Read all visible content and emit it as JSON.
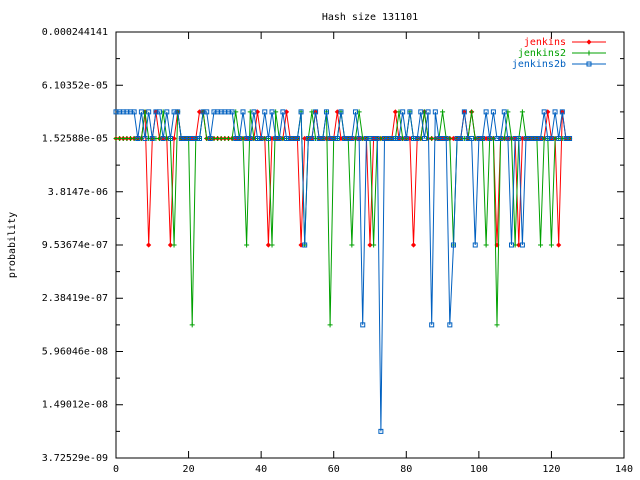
{
  "chart_data": {
    "type": "line",
    "title": "Hash size 131101",
    "xlabel": "",
    "ylabel": "probability",
    "xlim": [
      0,
      140
    ],
    "ylim": [
      3.72529e-09,
      0.000244141
    ],
    "yscale": "log",
    "xticks": [
      "0",
      "20",
      "40",
      "60",
      "80",
      "100",
      "120",
      "140"
    ],
    "yticks": [
      "0.000244141",
      "6.10352e-05",
      "1.52588e-05",
      "3.8147e-06",
      "9.53674e-07",
      "2.38419e-07",
      "5.96046e-08",
      "1.49012e-08",
      "3.72529e-09"
    ],
    "legend_position": "top-right",
    "series": [
      {
        "name": "jenkins",
        "color": "#ff0000",
        "marker": "diamond",
        "x": [
          0,
          1,
          2,
          3,
          4,
          5,
          6,
          7,
          8,
          9,
          10,
          11,
          12,
          13,
          14,
          15,
          16,
          17,
          18,
          19,
          20,
          21,
          22,
          23,
          24,
          25,
          26,
          27,
          28,
          29,
          30,
          31,
          32,
          33,
          34,
          35,
          36,
          37,
          38,
          39,
          40,
          41,
          42,
          43,
          44,
          45,
          46,
          47,
          48,
          49,
          50,
          51,
          52,
          53,
          54,
          55,
          56,
          57,
          58,
          59,
          60,
          61,
          62,
          63,
          64,
          65,
          66,
          67,
          68,
          69,
          70,
          71,
          72,
          73,
          74,
          75,
          76,
          77,
          78,
          79,
          80,
          81,
          82,
          83,
          84,
          85,
          86,
          87,
          88,
          89,
          90,
          91,
          92,
          93,
          94,
          95,
          96,
          97,
          98,
          99,
          100,
          101,
          102,
          103,
          104,
          105,
          106,
          107,
          108,
          109,
          110,
          111,
          112,
          113,
          114,
          115,
          116,
          117,
          118,
          119,
          120,
          121,
          122,
          123,
          124,
          125
        ],
        "y": [
          1.52588e-05,
          1.52588e-05,
          1.52588e-05,
          1.52588e-05,
          1.52588e-05,
          1.52588e-05,
          1.52588e-05,
          1.52588e-05,
          3.05176e-05,
          9.53674e-07,
          1.52588e-05,
          3.05176e-05,
          1.52588e-05,
          1.52588e-05,
          1.52588e-05,
          9.53674e-07,
          1.52588e-05,
          3.05176e-05,
          1.52588e-05,
          1.52588e-05,
          1.52588e-05,
          1.52588e-05,
          1.52588e-05,
          3.05176e-05,
          3.05176e-05,
          1.52588e-05,
          1.52588e-05,
          1.52588e-05,
          1.52588e-05,
          1.52588e-05,
          1.52588e-05,
          1.52588e-05,
          1.52588e-05,
          1.52588e-05,
          1.52588e-05,
          1.52588e-05,
          1.52588e-05,
          1.52588e-05,
          1.52588e-05,
          3.05176e-05,
          1.52588e-05,
          1.52588e-05,
          9.53674e-07,
          1.52588e-05,
          1.52588e-05,
          1.52588e-05,
          1.52588e-05,
          3.05176e-05,
          1.52588e-05,
          1.52588e-05,
          1.52588e-05,
          9.53674e-07,
          1.52588e-05,
          1.52588e-05,
          1.52588e-05,
          3.05176e-05,
          1.52588e-05,
          1.52588e-05,
          1.52588e-05,
          1.52588e-05,
          1.52588e-05,
          3.05176e-05,
          1.52588e-05,
          1.52588e-05,
          1.52588e-05,
          1.52588e-05,
          1.52588e-05,
          1.52588e-05,
          1.52588e-05,
          1.52588e-05,
          9.53674e-07,
          1.52588e-05,
          1.52588e-05,
          1.52588e-05,
          1.52588e-05,
          1.52588e-05,
          1.52588e-05,
          3.05176e-05,
          1.52588e-05,
          1.52588e-05,
          1.52588e-05,
          1.52588e-05,
          9.53674e-07,
          1.52588e-05,
          1.52588e-05,
          3.05176e-05,
          1.52588e-05,
          1.52588e-05,
          1.52588e-05,
          1.52588e-05,
          1.52588e-05,
          1.52588e-05,
          1.52588e-05,
          1.52588e-05,
          1.52588e-05,
          1.52588e-05,
          3.05176e-05,
          1.52588e-05,
          3.05176e-05,
          1.52588e-05,
          1.52588e-05,
          1.52588e-05,
          1.52588e-05,
          1.52588e-05,
          1.52588e-05,
          9.53674e-07,
          1.52588e-05,
          1.52588e-05,
          1.52588e-05,
          1.52588e-05,
          1.52588e-05,
          9.53674e-07,
          1.52588e-05,
          1.52588e-05,
          1.52588e-05,
          1.52588e-05,
          1.52588e-05,
          1.52588e-05,
          1.52588e-05,
          3.05176e-05,
          1.52588e-05,
          1.52588e-05,
          9.53674e-07,
          3.05176e-05,
          1.52588e-05,
          1.52588e-05
        ]
      },
      {
        "name": "jenkins2",
        "color": "#00a000",
        "marker": "plus",
        "x": [
          0,
          1,
          2,
          3,
          4,
          5,
          6,
          7,
          8,
          9,
          10,
          11,
          12,
          13,
          14,
          15,
          16,
          17,
          18,
          19,
          20,
          21,
          22,
          23,
          24,
          25,
          26,
          27,
          28,
          29,
          30,
          31,
          32,
          33,
          34,
          35,
          36,
          37,
          38,
          39,
          40,
          41,
          42,
          43,
          44,
          45,
          46,
          47,
          48,
          49,
          50,
          51,
          52,
          53,
          54,
          55,
          56,
          57,
          58,
          59,
          60,
          61,
          62,
          63,
          64,
          65,
          66,
          67,
          68,
          69,
          70,
          71,
          72,
          73,
          74,
          75,
          76,
          77,
          78,
          79,
          80,
          81,
          82,
          83,
          84,
          85,
          86,
          87,
          88,
          89,
          90,
          91,
          92,
          93,
          94,
          95,
          96,
          97,
          98,
          99,
          100,
          101,
          102,
          103,
          104,
          105,
          106,
          107,
          108,
          109,
          110,
          111,
          112,
          113,
          114,
          115,
          116,
          117,
          118,
          119,
          120,
          121,
          122,
          123,
          124,
          125
        ],
        "y": [
          1.52588e-05,
          1.52588e-05,
          1.52588e-05,
          1.52588e-05,
          1.52588e-05,
          1.52588e-05,
          1.52588e-05,
          1.52588e-05,
          3.05176e-05,
          1.52588e-05,
          1.52588e-05,
          1.52588e-05,
          1.52588e-05,
          3.05176e-05,
          1.52588e-05,
          1.52588e-05,
          9.53674e-07,
          3.05176e-05,
          1.52588e-05,
          1.52588e-05,
          1.52588e-05,
          1.19209e-07,
          1.52588e-05,
          1.52588e-05,
          3.05176e-05,
          1.52588e-05,
          1.52588e-05,
          1.52588e-05,
          1.52588e-05,
          1.52588e-05,
          1.52588e-05,
          1.52588e-05,
          1.52588e-05,
          3.05176e-05,
          1.52588e-05,
          1.52588e-05,
          9.53674e-07,
          3.05176e-05,
          1.52588e-05,
          1.52588e-05,
          1.52588e-05,
          1.52588e-05,
          1.52588e-05,
          9.53674e-07,
          3.05176e-05,
          1.52588e-05,
          1.52588e-05,
          1.52588e-05,
          1.52588e-05,
          1.52588e-05,
          1.52588e-05,
          3.05176e-05,
          9.53674e-07,
          1.52588e-05,
          3.05176e-05,
          1.52588e-05,
          1.52588e-05,
          1.52588e-05,
          3.05176e-05,
          1.19209e-07,
          1.52588e-05,
          1.52588e-05,
          3.05176e-05,
          1.52588e-05,
          1.52588e-05,
          9.53674e-07,
          1.52588e-05,
          3.05176e-05,
          1.52588e-05,
          1.52588e-05,
          1.52588e-05,
          9.53674e-07,
          1.52588e-05,
          1.52588e-05,
          1.52588e-05,
          1.52588e-05,
          1.52588e-05,
          1.52588e-05,
          3.05176e-05,
          1.52588e-05,
          1.52588e-05,
          3.05176e-05,
          1.52588e-05,
          1.52588e-05,
          1.52588e-05,
          3.05176e-05,
          1.52588e-05,
          1.52588e-05,
          1.52588e-05,
          1.52588e-05,
          3.05176e-05,
          1.52588e-05,
          1.52588e-05,
          9.53674e-07,
          1.52588e-05,
          1.52588e-05,
          1.52588e-05,
          1.52588e-05,
          3.05176e-05,
          1.52588e-05,
          1.52588e-05,
          1.52588e-05,
          9.53674e-07,
          1.52588e-05,
          1.52588e-05,
          1.19209e-07,
          1.52588e-05,
          1.52588e-05,
          3.05176e-05,
          1.52588e-05,
          9.53674e-07,
          1.52588e-05,
          3.05176e-05,
          1.52588e-05,
          1.52588e-05,
          1.52588e-05,
          1.52588e-05,
          9.53674e-07,
          1.52588e-05,
          1.52588e-05,
          9.53674e-07,
          1.52588e-05,
          1.52588e-05,
          1.52588e-05,
          1.52588e-05,
          1.52588e-05
        ]
      },
      {
        "name": "jenkins2b",
        "color": "#0060c0",
        "marker": "square",
        "x": [
          0,
          1,
          2,
          3,
          4,
          5,
          6,
          7,
          8,
          9,
          10,
          11,
          12,
          13,
          14,
          15,
          16,
          17,
          18,
          19,
          20,
          21,
          22,
          23,
          24,
          25,
          26,
          27,
          28,
          29,
          30,
          31,
          32,
          33,
          34,
          35,
          36,
          37,
          38,
          39,
          40,
          41,
          42,
          43,
          44,
          45,
          46,
          47,
          48,
          49,
          50,
          51,
          52,
          53,
          54,
          55,
          56,
          57,
          58,
          59,
          60,
          61,
          62,
          63,
          64,
          65,
          66,
          67,
          68,
          69,
          70,
          71,
          72,
          73,
          74,
          75,
          76,
          77,
          78,
          79,
          80,
          81,
          82,
          83,
          84,
          85,
          86,
          87,
          88,
          89,
          90,
          91,
          92,
          93,
          94,
          95,
          96,
          97,
          98,
          99,
          100,
          101,
          102,
          103,
          104,
          105,
          106,
          107,
          108,
          109,
          110,
          111,
          112,
          113,
          114,
          115,
          116,
          117,
          118,
          119,
          120,
          121,
          122,
          123,
          124,
          125
        ],
        "y": [
          3.05176e-05,
          3.05176e-05,
          3.05176e-05,
          3.05176e-05,
          3.05176e-05,
          3.05176e-05,
          1.52588e-05,
          3.05176e-05,
          1.52588e-05,
          3.05176e-05,
          1.52588e-05,
          3.05176e-05,
          3.05176e-05,
          1.52588e-05,
          3.05176e-05,
          1.52588e-05,
          3.05176e-05,
          3.05176e-05,
          1.52588e-05,
          1.52588e-05,
          1.52588e-05,
          1.52588e-05,
          1.52588e-05,
          1.52588e-05,
          3.05176e-05,
          3.05176e-05,
          1.52588e-05,
          3.05176e-05,
          3.05176e-05,
          3.05176e-05,
          3.05176e-05,
          3.05176e-05,
          3.05176e-05,
          1.52588e-05,
          1.52588e-05,
          3.05176e-05,
          1.52588e-05,
          1.52588e-05,
          3.05176e-05,
          1.52588e-05,
          1.52588e-05,
          3.05176e-05,
          1.52588e-05,
          3.05176e-05,
          1.52588e-05,
          1.52588e-05,
          3.05176e-05,
          1.52588e-05,
          1.52588e-05,
          1.52588e-05,
          1.52588e-05,
          3.05176e-05,
          9.53674e-07,
          1.52588e-05,
          1.52588e-05,
          3.05176e-05,
          1.52588e-05,
          1.52588e-05,
          3.05176e-05,
          1.52588e-05,
          1.52588e-05,
          1.52588e-05,
          3.05176e-05,
          1.52588e-05,
          1.52588e-05,
          1.52588e-05,
          3.05176e-05,
          1.52588e-05,
          1.19209e-07,
          1.52588e-05,
          1.52588e-05,
          1.52588e-05,
          1.52588e-05,
          7.45058e-09,
          1.52588e-05,
          1.52588e-05,
          1.52588e-05,
          1.52588e-05,
          1.52588e-05,
          3.05176e-05,
          1.52588e-05,
          3.05176e-05,
          1.52588e-05,
          1.52588e-05,
          3.05176e-05,
          1.52588e-05,
          3.05176e-05,
          1.19209e-07,
          3.05176e-05,
          1.52588e-05,
          1.52588e-05,
          1.52588e-05,
          1.19209e-07,
          9.53674e-07,
          1.52588e-05,
          1.52588e-05,
          3.05176e-05,
          1.52588e-05,
          1.52588e-05,
          9.53674e-07,
          1.52588e-05,
          1.52588e-05,
          3.05176e-05,
          1.52588e-05,
          3.05176e-05,
          1.52588e-05,
          1.52588e-05,
          3.05176e-05,
          1.52588e-05,
          9.53674e-07,
          1.52588e-05,
          1.52588e-05,
          9.53674e-07,
          1.52588e-05,
          1.52588e-05,
          1.52588e-05,
          1.52588e-05,
          1.52588e-05,
          3.05176e-05,
          1.52588e-05,
          1.52588e-05,
          3.05176e-05,
          1.52588e-05,
          3.05176e-05,
          1.52588e-05,
          1.52588e-05
        ]
      }
    ]
  }
}
